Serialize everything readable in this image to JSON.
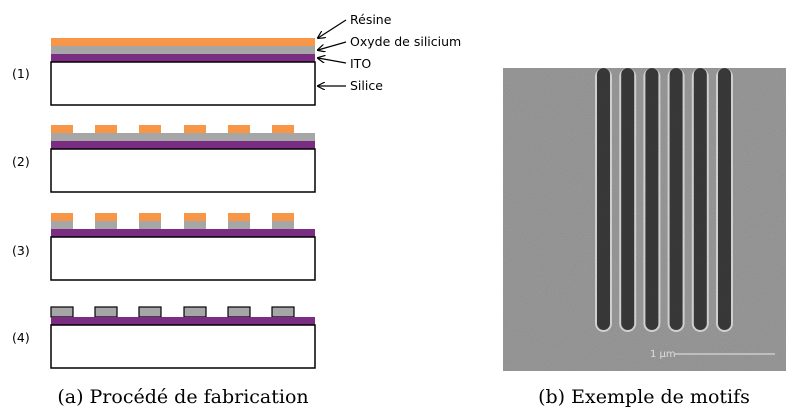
{
  "figure_a": {
    "step_labels": [
      "(1)",
      "(2)",
      "(3)",
      "(4)"
    ],
    "layer_labels": {
      "resist": "Résine",
      "oxide": "Oxyde de silicium",
      "ito": "ITO",
      "silica": "Silice"
    },
    "caption": "(a) Procédé de fabrication"
  },
  "figure_b": {
    "caption": "(b) Exemple de motifs",
    "scale_label": "1 µm",
    "line_count": 6
  },
  "colors": {
    "resist": "#F79646",
    "oxide": "#A6A6A6",
    "ito": "#7B2C83",
    "silica": "#FFFFFF",
    "sem_background": "#9a9a9a",
    "sem_line_dark": "#3a3a3a"
  }
}
